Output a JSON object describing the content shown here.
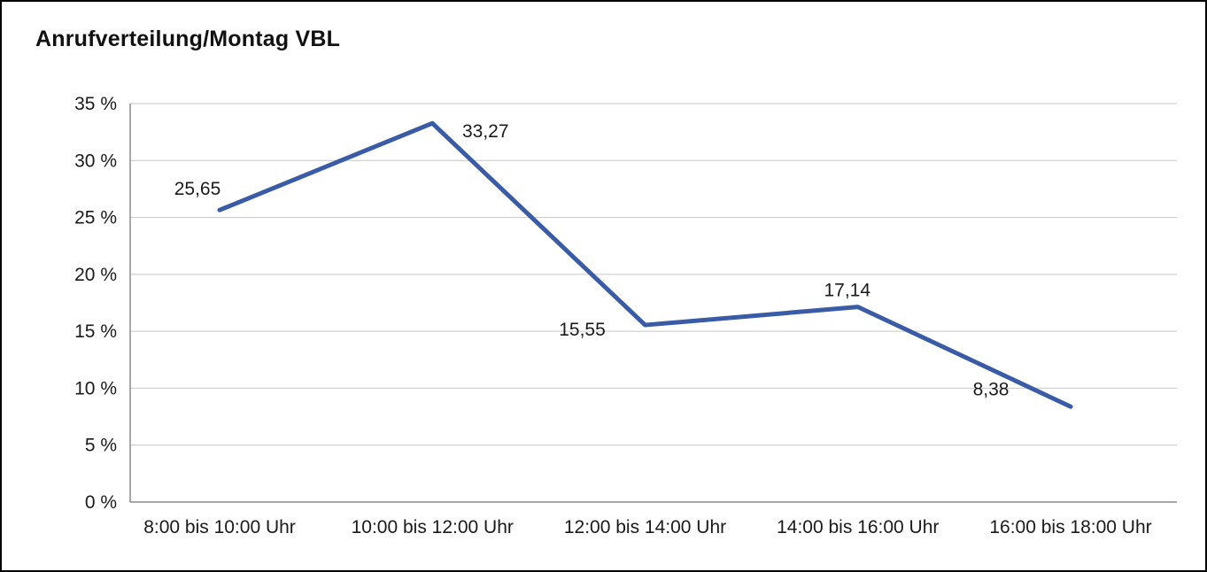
{
  "chart_data": {
    "type": "line",
    "title": "Anrufverteilung/Montag VBL",
    "categories": [
      "8:00 bis 10:00 Uhr",
      "10:00 bis 12:00 Uhr",
      "12:00 bis 14:00 Uhr",
      "14:00 bis 16:00 Uhr",
      "16:00 bis 18:00 Uhr"
    ],
    "values": [
      25.65,
      33.27,
      15.55,
      17.14,
      8.38
    ],
    "value_labels": [
      "25,65",
      "33,27",
      "15,55",
      "17,14",
      "8,38"
    ],
    "xlabel": "",
    "ylabel": "",
    "ylim": [
      0,
      35
    ],
    "ytick_step": 5,
    "ytick_labels": [
      "0 %",
      "5 %",
      "10 %",
      "15 %",
      "20 %",
      "25 %",
      "30 %",
      "35 %"
    ],
    "grid": "horizontal",
    "legend": "none",
    "colors": {
      "line": "#3a5ba5",
      "grid": "#c6c6c6",
      "axis": "#8c8c8c",
      "text": "#1a1a1a",
      "background": "#ffffff",
      "border": "#000000"
    }
  }
}
